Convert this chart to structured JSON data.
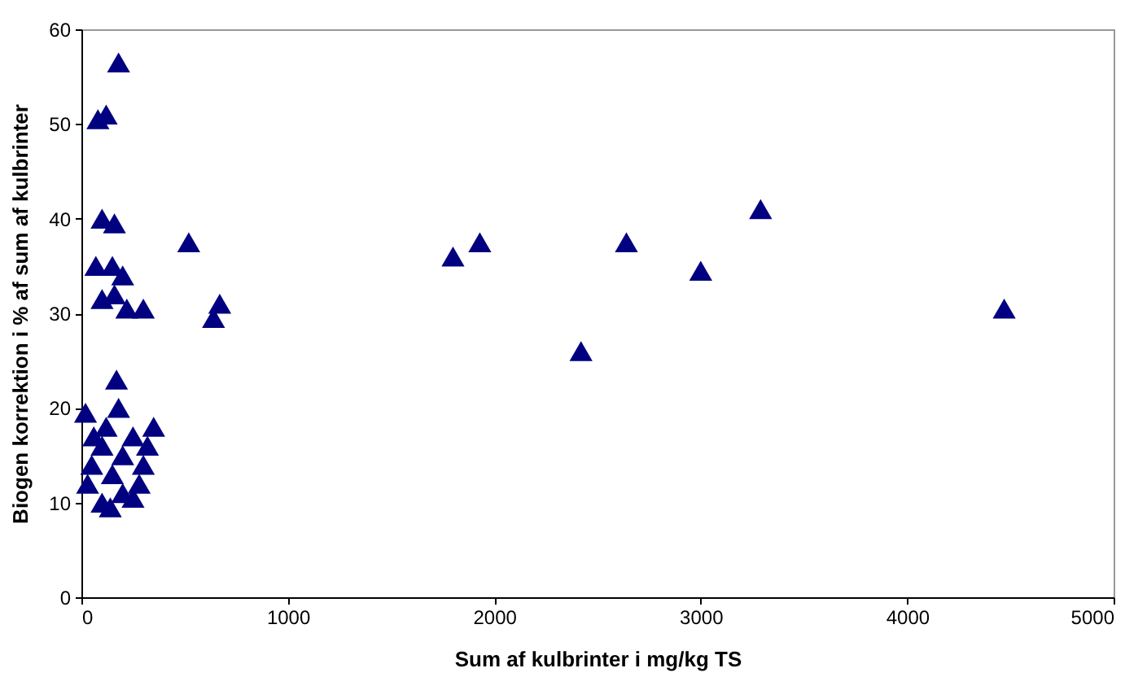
{
  "chart_data": {
    "type": "scatter",
    "xlabel": "Sum af kulbrinter i mg/kg TS",
    "ylabel": "Biogen korrektion i % af sum af kulbrinter",
    "x": [
      1800,
      1930,
      2420,
      2640,
      3000,
      3290,
      4470,
      520,
      640,
      670,
      180,
      80,
      120,
      100,
      160,
      70,
      150,
      200,
      100,
      160,
      220,
      300,
      170,
      20,
      350,
      250,
      100,
      200,
      50,
      150,
      300,
      30,
      200,
      100,
      250,
      180,
      120,
      280,
      60,
      140,
      320
    ],
    "values": [
      36,
      37.5,
      26,
      37.5,
      34.5,
      41,
      30.5,
      37.5,
      29.5,
      31,
      56.5,
      50.5,
      51,
      40,
      39.5,
      35,
      35,
      34,
      31.5,
      32,
      30.5,
      30.5,
      23,
      19.5,
      18,
      17,
      16,
      15,
      14,
      13,
      14,
      12,
      11,
      10,
      10.5,
      20,
      18,
      12,
      17,
      9.5,
      16
    ],
    "color": "#000080",
    "marker": "triangle",
    "grid": false,
    "xlim": [
      0,
      5000
    ],
    "xticks": [
      0,
      1000,
      2000,
      3000,
      4000,
      5000
    ],
    "ylim": [
      0,
      60
    ],
    "yticks": [
      0,
      10,
      20,
      30,
      40,
      50,
      60
    ]
  }
}
